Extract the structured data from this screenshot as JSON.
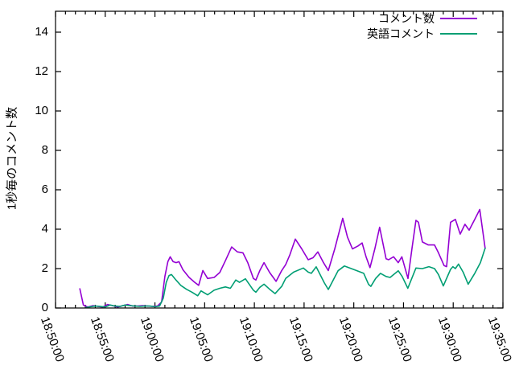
{
  "chart_data": {
    "type": "line",
    "title": "",
    "xlabel": "",
    "ylabel": "1秒毎のコメント数",
    "grid": false,
    "legend_position": "top-right-inside",
    "ylim": [
      0,
      15.05
    ],
    "y_ticks": [
      0,
      2,
      4,
      6,
      8,
      10,
      12,
      14
    ],
    "y_tick_labels": [
      "0",
      "2",
      "4",
      "6",
      "8",
      "10",
      "12",
      "14"
    ],
    "x_range_seconds_after_18_50_00": [
      0,
      2700
    ],
    "x_major_tick_interval_seconds": 300,
    "x_minor_tick_interval_seconds": 60,
    "x_tick_labels": [
      "18:50:00",
      "18:55:00",
      "19:00:00",
      "19:05:00",
      "19:10:00",
      "19:15:00",
      "19:20:00",
      "19:25:00",
      "19:30:00",
      "19:35:00"
    ],
    "series": [
      {
        "name": "コメント数",
        "color": "#9400d3",
        "points": [
          [
            146,
            1.0
          ],
          [
            168,
            0.15
          ],
          [
            195,
            0.05
          ],
          [
            225,
            0.12
          ],
          [
            255,
            0.08
          ],
          [
            285,
            0.05
          ],
          [
            315,
            0.18
          ],
          [
            345,
            0.12
          ],
          [
            375,
            0.05
          ],
          [
            405,
            0.12
          ],
          [
            435,
            0.18
          ],
          [
            465,
            0.1
          ],
          [
            495,
            0.1
          ],
          [
            525,
            0.12
          ],
          [
            555,
            0.1
          ],
          [
            585,
            0.08
          ],
          [
            615,
            0.1
          ],
          [
            640,
            0.3
          ],
          [
            660,
            1.6
          ],
          [
            678,
            2.35
          ],
          [
            692,
            2.6
          ],
          [
            710,
            2.35
          ],
          [
            728,
            2.3
          ],
          [
            745,
            2.35
          ],
          [
            768,
            1.95
          ],
          [
            806,
            1.55
          ],
          [
            840,
            1.3
          ],
          [
            864,
            1.15
          ],
          [
            889,
            1.9
          ],
          [
            918,
            1.5
          ],
          [
            957,
            1.55
          ],
          [
            991,
            1.8
          ],
          [
            1025,
            2.4
          ],
          [
            1063,
            3.1
          ],
          [
            1097,
            2.85
          ],
          [
            1131,
            2.8
          ],
          [
            1160,
            2.3
          ],
          [
            1194,
            1.5
          ],
          [
            1209,
            1.42
          ],
          [
            1233,
            1.9
          ],
          [
            1258,
            2.3
          ],
          [
            1292,
            1.8
          ],
          [
            1331,
            1.35
          ],
          [
            1365,
            1.9
          ],
          [
            1389,
            2.2
          ],
          [
            1414,
            2.7
          ],
          [
            1447,
            3.5
          ],
          [
            1486,
            3.0
          ],
          [
            1525,
            2.45
          ],
          [
            1554,
            2.55
          ],
          [
            1583,
            2.85
          ],
          [
            1617,
            2.3
          ],
          [
            1646,
            1.9
          ],
          [
            1685,
            3.0
          ],
          [
            1733,
            4.55
          ],
          [
            1762,
            3.6
          ],
          [
            1792,
            3.0
          ],
          [
            1826,
            3.15
          ],
          [
            1850,
            3.3
          ],
          [
            1874,
            2.6
          ],
          [
            1898,
            2.05
          ],
          [
            1927,
            3.0
          ],
          [
            1956,
            4.1
          ],
          [
            1995,
            2.5
          ],
          [
            2010,
            2.45
          ],
          [
            2040,
            2.6
          ],
          [
            2068,
            2.3
          ],
          [
            2090,
            2.6
          ],
          [
            2127,
            1.5
          ],
          [
            2151,
            3.0
          ],
          [
            2175,
            4.45
          ],
          [
            2190,
            4.35
          ],
          [
            2214,
            3.35
          ],
          [
            2250,
            3.2
          ],
          [
            2287,
            3.2
          ],
          [
            2311,
            2.8
          ],
          [
            2345,
            2.15
          ],
          [
            2360,
            2.1
          ],
          [
            2384,
            4.35
          ],
          [
            2413,
            4.5
          ],
          [
            2442,
            3.75
          ],
          [
            2471,
            4.25
          ],
          [
            2496,
            3.95
          ],
          [
            2530,
            4.5
          ],
          [
            2560,
            5.0
          ],
          [
            2593,
            3.0
          ]
        ]
      },
      {
        "name": "英語コメント",
        "color": "#009e73",
        "points": [
          [
            180,
            0.02
          ],
          [
            210,
            0.06
          ],
          [
            240,
            0.1
          ],
          [
            270,
            0.08
          ],
          [
            300,
            0.05
          ],
          [
            330,
            0.15
          ],
          [
            360,
            0.1
          ],
          [
            390,
            0.08
          ],
          [
            420,
            0.15
          ],
          [
            450,
            0.12
          ],
          [
            480,
            0.1
          ],
          [
            510,
            0.08
          ],
          [
            540,
            0.1
          ],
          [
            570,
            0.1
          ],
          [
            600,
            0.06
          ],
          [
            628,
            0.1
          ],
          [
            650,
            0.5
          ],
          [
            668,
            1.3
          ],
          [
            685,
            1.65
          ],
          [
            700,
            1.7
          ],
          [
            727,
            1.42
          ],
          [
            757,
            1.14
          ],
          [
            790,
            0.95
          ],
          [
            824,
            0.8
          ],
          [
            858,
            0.62
          ],
          [
            878,
            0.87
          ],
          [
            918,
            0.67
          ],
          [
            957,
            0.9
          ],
          [
            991,
            1.0
          ],
          [
            1025,
            1.07
          ],
          [
            1055,
            1.0
          ],
          [
            1088,
            1.42
          ],
          [
            1110,
            1.3
          ],
          [
            1146,
            1.48
          ],
          [
            1194,
            0.9
          ],
          [
            1209,
            0.8
          ],
          [
            1233,
            1.05
          ],
          [
            1258,
            1.21
          ],
          [
            1292,
            0.95
          ],
          [
            1325,
            0.73
          ],
          [
            1365,
            1.1
          ],
          [
            1389,
            1.5
          ],
          [
            1437,
            1.82
          ],
          [
            1495,
            2.03
          ],
          [
            1525,
            1.82
          ],
          [
            1544,
            1.76
          ],
          [
            1573,
            2.09
          ],
          [
            1622,
            1.28
          ],
          [
            1646,
            0.94
          ],
          [
            1705,
            1.89
          ],
          [
            1743,
            2.13
          ],
          [
            1801,
            1.95
          ],
          [
            1860,
            1.76
          ],
          [
            1889,
            1.2
          ],
          [
            1903,
            1.1
          ],
          [
            1932,
            1.5
          ],
          [
            1961,
            1.76
          ],
          [
            1995,
            1.6
          ],
          [
            2019,
            1.55
          ],
          [
            2068,
            1.89
          ],
          [
            2092,
            1.6
          ],
          [
            2126,
            1.0
          ],
          [
            2175,
            2.03
          ],
          [
            2214,
            2.0
          ],
          [
            2253,
            2.1
          ],
          [
            2287,
            2.0
          ],
          [
            2311,
            1.7
          ],
          [
            2340,
            1.12
          ],
          [
            2384,
            1.96
          ],
          [
            2398,
            2.1
          ],
          [
            2413,
            2.0
          ],
          [
            2432,
            2.23
          ],
          [
            2461,
            1.8
          ],
          [
            2490,
            1.21
          ],
          [
            2530,
            1.76
          ],
          [
            2564,
            2.3
          ],
          [
            2593,
            3.05
          ]
        ]
      }
    ]
  },
  "colors": {
    "background": "#ffffff",
    "axis": "#000000",
    "text": "#000000",
    "series1": "#9400d3",
    "series2": "#009e73"
  }
}
